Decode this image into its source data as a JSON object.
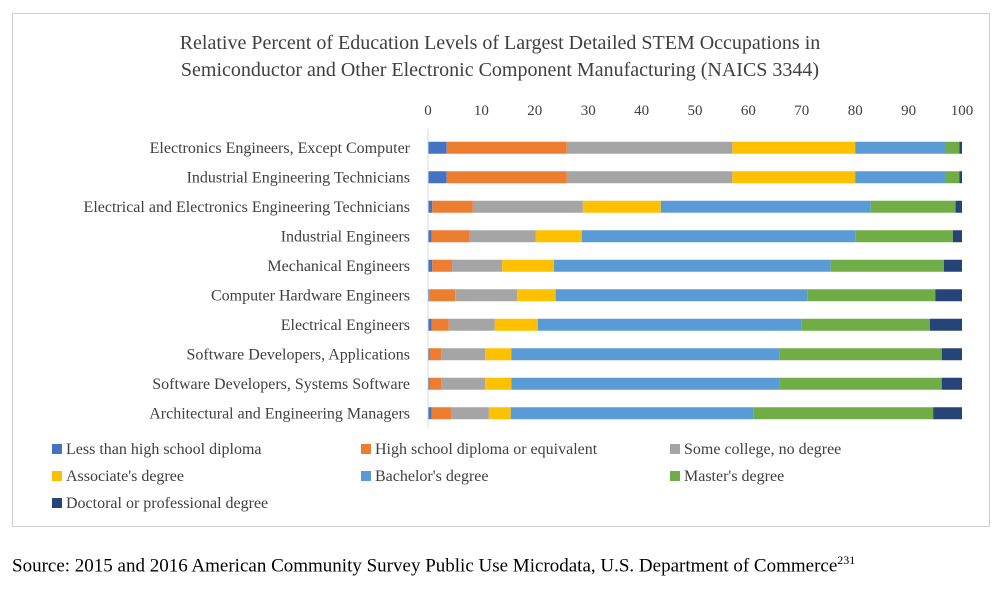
{
  "chart_data": {
    "type": "bar",
    "orientation": "horizontal",
    "stacked": true,
    "title": [
      "Relative Percent of Education Levels of Largest Detailed STEM Occupations in",
      "Semiconductor and Other Electronic Component Manufacturing (NAICS 3344)"
    ],
    "xlim": [
      0,
      100
    ],
    "x_ticks": [
      0,
      10,
      20,
      30,
      40,
      50,
      60,
      70,
      80,
      90,
      100
    ],
    "x_axis_position": "top",
    "grid": false,
    "legend_position": "bottom",
    "categories": [
      "Electronics Engineers, Except Computer",
      "Industrial Engineering Technicians",
      "Electrical and Electronics Engineering Technicians",
      "Industrial Engineers",
      "Mechanical Engineers",
      "Computer Hardware Engineers",
      "Electrical Engineers",
      "Software Developers, Applications",
      "Software Developers, Systems Software",
      "Architectural and Engineering Managers"
    ],
    "series": [
      {
        "name": "Less than high school diploma",
        "color": "#4472C4",
        "values": [
          3.5,
          3.5,
          0.8,
          0.7,
          0.8,
          0.2,
          0.7,
          0.3,
          0.3,
          0.7
        ]
      },
      {
        "name": "High school diploma or equivalent",
        "color": "#ED7D31",
        "values": [
          22.5,
          22.5,
          7.6,
          7.1,
          3.7,
          4.9,
          3.2,
          2.2,
          2.2,
          3.6
        ]
      },
      {
        "name": "Some college, no degree",
        "color": "#A5A5A5",
        "values": [
          31,
          31,
          20.6,
          12.4,
          9.4,
          11.6,
          8.6,
          8.2,
          8.2,
          7.1
        ]
      },
      {
        "name": "Associate's degree",
        "color": "#FFC000",
        "values": [
          23,
          23,
          14.6,
          8.6,
          9.7,
          7.2,
          8.1,
          4.9,
          4.9,
          4.1
        ]
      },
      {
        "name": "Bachelor's degree",
        "color": "#5B9BD5",
        "values": [
          17,
          17,
          39.3,
          51.2,
          51.8,
          47.2,
          49.3,
          50.3,
          50.3,
          45.4
        ]
      },
      {
        "name": "Master's degree",
        "color": "#70AD47",
        "values": [
          2.5,
          2.5,
          15.9,
          18.3,
          21.2,
          23.9,
          24.1,
          30.3,
          30.3,
          33.7
        ]
      },
      {
        "name": "Doctoral or professional degree",
        "color": "#264478",
        "values": [
          0.5,
          0.5,
          1.2,
          1.7,
          3.4,
          5.0,
          6.0,
          3.8,
          3.8,
          5.4
        ]
      }
    ]
  },
  "source": {
    "text": "Source: 2015 and 2016 American Community Survey Public Use Microdata, U.S. Department of Commerce",
    "footnote": "231"
  }
}
